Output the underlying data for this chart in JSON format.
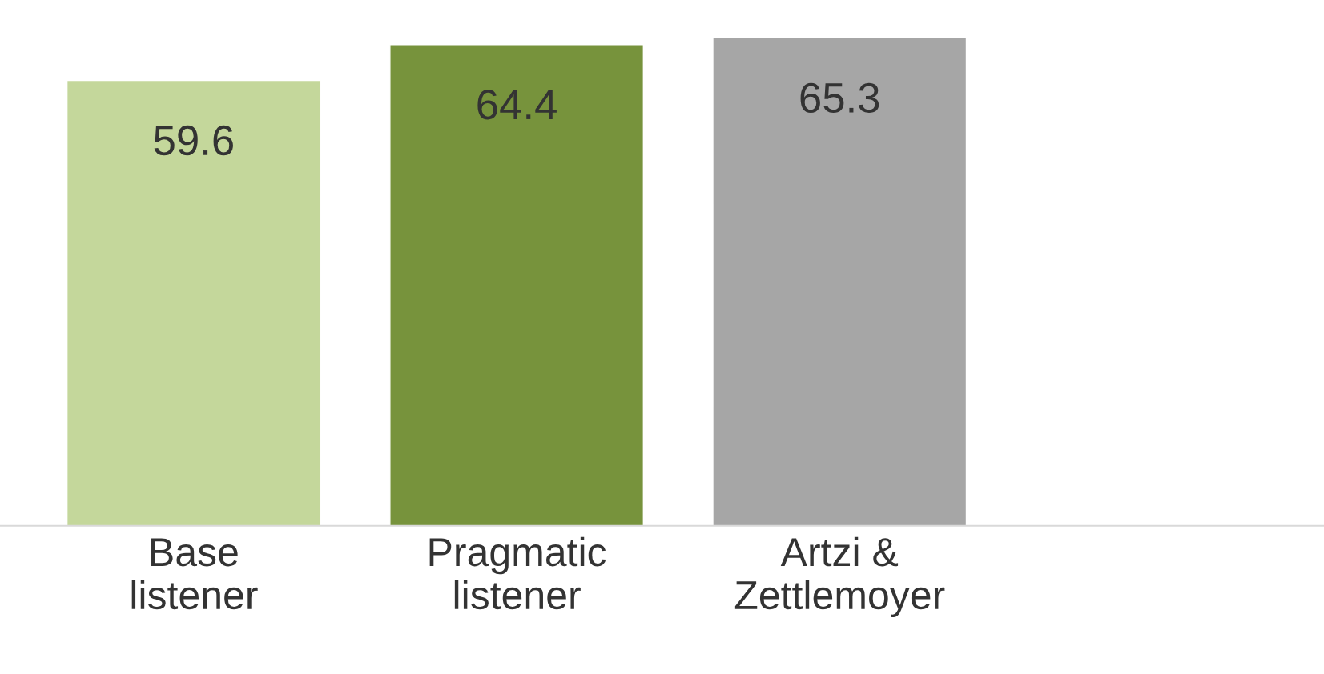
{
  "chart_data": {
    "type": "bar",
    "categories": [
      "Base\nlistener",
      "Pragmatic\nlistener",
      "Artzi &\nZettlemoyer",
      null
    ],
    "values": [
      59.6,
      64.4,
      65.3,
      null
    ],
    "colors": [
      "#c4d79b",
      "#77933c",
      "#a6a6a6",
      "#a6a6a6"
    ],
    "tick_labels": "x",
    "data_labels": true,
    "grid": false,
    "legend": false
  }
}
